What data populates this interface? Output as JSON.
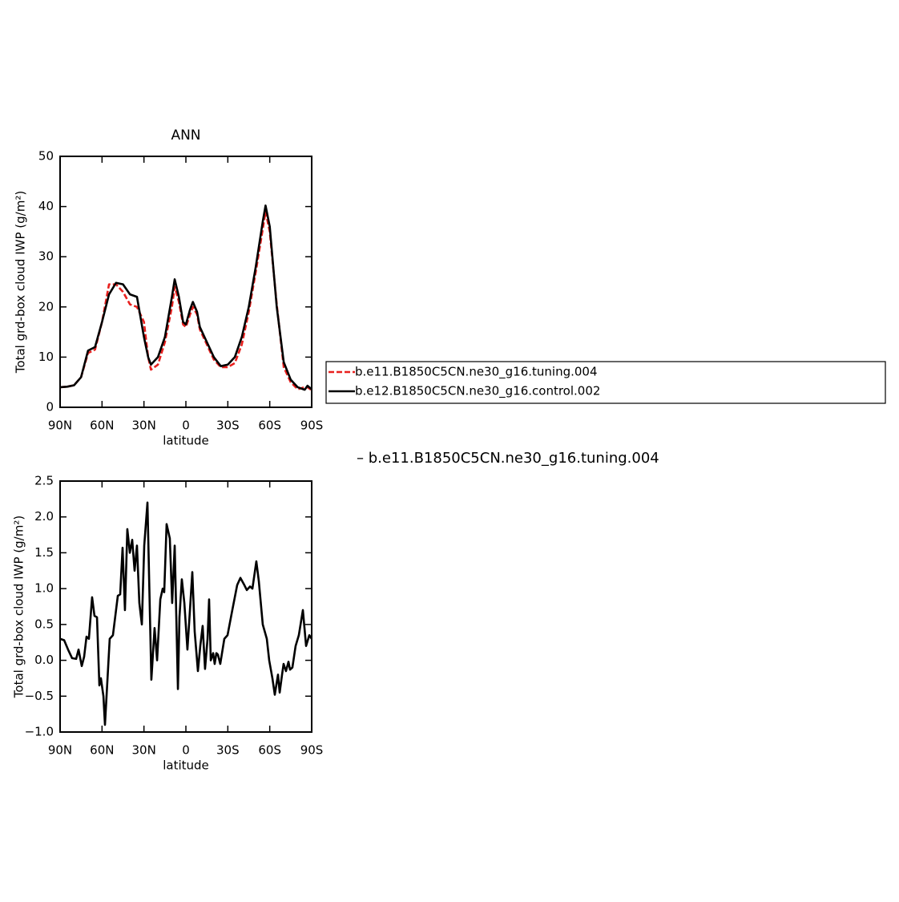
{
  "chart_data": [
    {
      "type": "line",
      "title": "ANN",
      "xlabel": "latitude",
      "ylabel": "Total grd-box cloud IWP (g/m²)",
      "xlim": [
        90,
        -90
      ],
      "xticks": [
        {
          "value": 90,
          "label": "90N"
        },
        {
          "value": 60,
          "label": "60N"
        },
        {
          "value": 30,
          "label": "30N"
        },
        0,
        {
          "value": -30,
          "label": "30S"
        },
        {
          "value": -60,
          "label": "60S"
        },
        {
          "value": -90,
          "label": "90S"
        }
      ],
      "ylim": [
        0,
        50
      ],
      "yticks": [
        0,
        10,
        20,
        30,
        40,
        50
      ],
      "x": [
        90,
        85,
        80,
        75,
        70,
        65,
        60,
        55,
        50,
        45,
        40,
        35,
        30,
        27,
        25,
        20,
        15,
        10,
        8,
        5,
        2,
        0,
        -3,
        -5,
        -8,
        -10,
        -15,
        -20,
        -25,
        -30,
        -35,
        -40,
        -45,
        -50,
        -55,
        -57,
        -60,
        -65,
        -70,
        -75,
        -80,
        -85,
        -87,
        -90
      ],
      "series": [
        {
          "name": "b.e11.B1850C5CN.ne30_g16.tuning.004",
          "color": "#e8201e",
          "dashed": true,
          "values": [
            4.0,
            4.1,
            4.4,
            6.0,
            10.8,
            11.5,
            17.0,
            24.5,
            24.5,
            23.0,
            20.5,
            20.0,
            17.0,
            10.0,
            7.5,
            8.5,
            13.0,
            20.0,
            24.0,
            21.0,
            16.5,
            16.0,
            18.5,
            20.0,
            18.5,
            15.5,
            12.5,
            9.5,
            8.0,
            8.0,
            8.8,
            12.5,
            19.0,
            27.0,
            35.5,
            39.0,
            35.0,
            20.5,
            8.0,
            5.0,
            3.6,
            4.0,
            4.0,
            3.4
          ]
        },
        {
          "name": "b.e12.B1850C5CN.ne30_g16.control.002",
          "color": "#000000",
          "dashed": false,
          "values": [
            4.0,
            4.1,
            4.4,
            6.0,
            11.3,
            12.0,
            17.0,
            22.5,
            24.8,
            24.5,
            22.5,
            22.0,
            14.0,
            10.0,
            8.5,
            10.0,
            14.0,
            22.0,
            25.5,
            22.0,
            17.0,
            16.5,
            19.5,
            21.0,
            19.0,
            16.0,
            13.0,
            10.0,
            8.2,
            8.5,
            10.0,
            14.0,
            20.0,
            28.0,
            37.0,
            40.2,
            36.0,
            20.0,
            9.0,
            5.5,
            4.0,
            3.5,
            4.3,
            3.6
          ]
        }
      ]
    },
    {
      "type": "line",
      "annotation": "– b.e11.B1850C5CN.ne30_g16.tuning.004",
      "xlabel": "latitude",
      "ylabel": "Total grd-box cloud IWP (g/m²)",
      "xlim": [
        90,
        -90
      ],
      "xticks": [
        {
          "value": 90,
          "label": "90N"
        },
        {
          "value": 60,
          "label": "60N"
        },
        {
          "value": 30,
          "label": "30N"
        },
        0,
        {
          "value": -30,
          "label": "30S"
        },
        {
          "value": -60,
          "label": "60S"
        },
        {
          "value": -90,
          "label": "90S"
        }
      ],
      "ylim": [
        -1.0,
        2.5
      ],
      "yticks": [
        {
          "value": -1.0,
          "label": "−1.0"
        },
        {
          "value": -0.5,
          "label": "−0.5"
        },
        {
          "value": 0,
          "label": "0.0"
        },
        0.5,
        {
          "value": 1,
          "label": "1.0"
        },
        1.5,
        {
          "value": 2,
          "label": "2.0"
        },
        2.5
      ],
      "x": [
        90,
        87.1,
        84.3,
        81.4,
        78.5,
        76.8,
        74.5,
        72.8,
        71.1,
        69.4,
        67.1,
        65.4,
        63.6,
        61.9,
        60.8,
        59.0,
        57.9,
        56.2,
        54.5,
        52.2,
        48.7,
        47.0,
        45.3,
        43.6,
        41.9,
        40.1,
        38.4,
        36.7,
        35.0,
        33.3,
        31.5,
        29.8,
        27.5,
        24.7,
        22.4,
        20.6,
        18.3,
        16.6,
        15.5,
        13.8,
        11.5,
        9.8,
        8.0,
        5.7,
        4.6,
        2.9,
        1.1,
        -1.1,
        -2.9,
        -4.6,
        -6.3,
        -8.6,
        -10.3,
        -12.0,
        -13.7,
        -15.5,
        -16.6,
        -17.8,
        -19.5,
        -20.6,
        -21.8,
        -22.9,
        -24.6,
        -27.5,
        -29.8,
        -33.2,
        -36.7,
        -39.0,
        -41.8,
        -43.6,
        -45.9,
        -47.6,
        -50.4,
        -52.2,
        -55.0,
        -57.9,
        -59.6,
        -61.9,
        -63.6,
        -65.9,
        -67.1,
        -68.8,
        -69.9,
        -71.6,
        -73.4,
        -74.5,
        -76.2,
        -78.5,
        -80.8,
        -83.7,
        -86.0,
        -88.3,
        -90
      ],
      "series": [
        {
          "color": "#000000",
          "values": [
            0.3,
            0.28,
            0.15,
            0.03,
            0.02,
            0.15,
            -0.08,
            0.05,
            0.33,
            0.3,
            0.88,
            0.62,
            0.6,
            -0.35,
            -0.25,
            -0.5,
            -0.9,
            -0.3,
            0.3,
            0.35,
            0.9,
            0.92,
            1.57,
            0.7,
            1.83,
            1.5,
            1.68,
            1.25,
            1.6,
            0.8,
            0.5,
            1.6,
            2.2,
            -0.27,
            0.45,
            0.0,
            0.85,
            1.0,
            0.95,
            1.9,
            1.7,
            0.8,
            1.6,
            -0.4,
            0.6,
            1.13,
            0.8,
            0.15,
            0.7,
            1.23,
            0.4,
            -0.15,
            0.2,
            0.48,
            -0.12,
            0.3,
            0.85,
            0.0,
            0.1,
            -0.05,
            0.1,
            0.08,
            -0.05,
            0.3,
            0.35,
            0.7,
            1.05,
            1.15,
            1.05,
            0.98,
            1.03,
            1.0,
            1.38,
            1.1,
            0.5,
            0.3,
            0.0,
            -0.25,
            -0.48,
            -0.2,
            -0.45,
            -0.2,
            -0.05,
            -0.15,
            -0.02,
            -0.13,
            -0.1,
            0.2,
            0.35,
            0.7,
            0.2,
            0.35,
            0.3
          ]
        }
      ]
    }
  ]
}
